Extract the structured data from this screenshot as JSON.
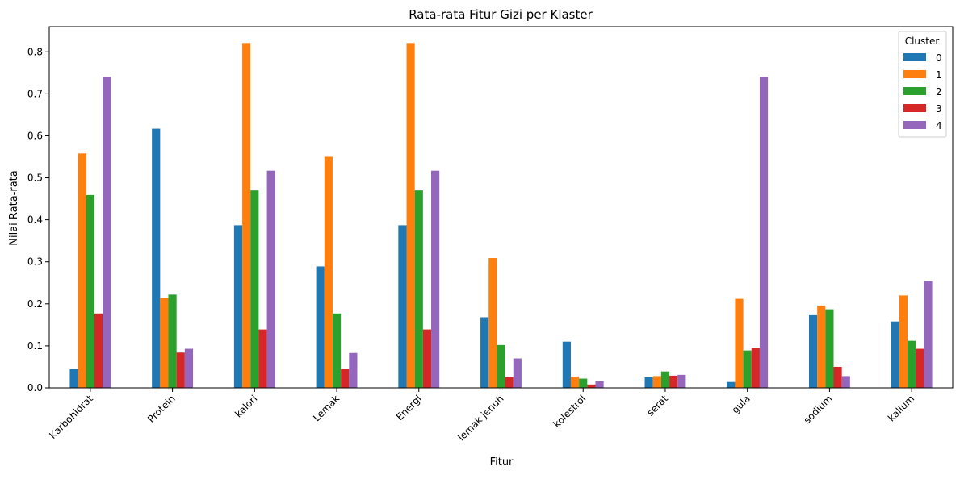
{
  "chart_data": {
    "type": "bar",
    "title": "Rata-rata Fitur Gizi per Klaster",
    "xlabel": "Fitur",
    "ylabel": "Nilai Rata-rata",
    "ylim": [
      0,
      0.86
    ],
    "yticks": [
      "0.0",
      "0.1",
      "0.2",
      "0.3",
      "0.4",
      "0.5",
      "0.6",
      "0.7",
      "0.8"
    ],
    "categories": [
      "Karbohidrat",
      "Protein",
      "kalori",
      "Lemak",
      "Energi",
      "lemak jenuh",
      "kolestrol",
      "serat",
      "gula",
      "sodium",
      "kalium"
    ],
    "legend": {
      "title": "Cluster",
      "placement": "top-right"
    },
    "series": [
      {
        "name": "0",
        "color": "#1f77b4",
        "values": [
          0.045,
          0.617,
          0.387,
          0.289,
          0.387,
          0.168,
          0.11,
          0.025,
          0.014,
          0.173,
          0.158
        ]
      },
      {
        "name": "1",
        "color": "#ff7f0e",
        "values": [
          0.558,
          0.214,
          0.821,
          0.55,
          0.821,
          0.309,
          0.027,
          0.028,
          0.212,
          0.196,
          0.22
        ]
      },
      {
        "name": "2",
        "color": "#2ca02c",
        "values": [
          0.459,
          0.222,
          0.47,
          0.177,
          0.47,
          0.102,
          0.022,
          0.039,
          0.089,
          0.187,
          0.112
        ]
      },
      {
        "name": "3",
        "color": "#d62728",
        "values": [
          0.177,
          0.084,
          0.139,
          0.045,
          0.139,
          0.025,
          0.008,
          0.029,
          0.095,
          0.05,
          0.093
        ]
      },
      {
        "name": "4",
        "color": "#9467bd",
        "values": [
          0.74,
          0.093,
          0.517,
          0.083,
          0.517,
          0.07,
          0.016,
          0.031,
          0.74,
          0.028,
          0.254
        ]
      }
    ]
  }
}
